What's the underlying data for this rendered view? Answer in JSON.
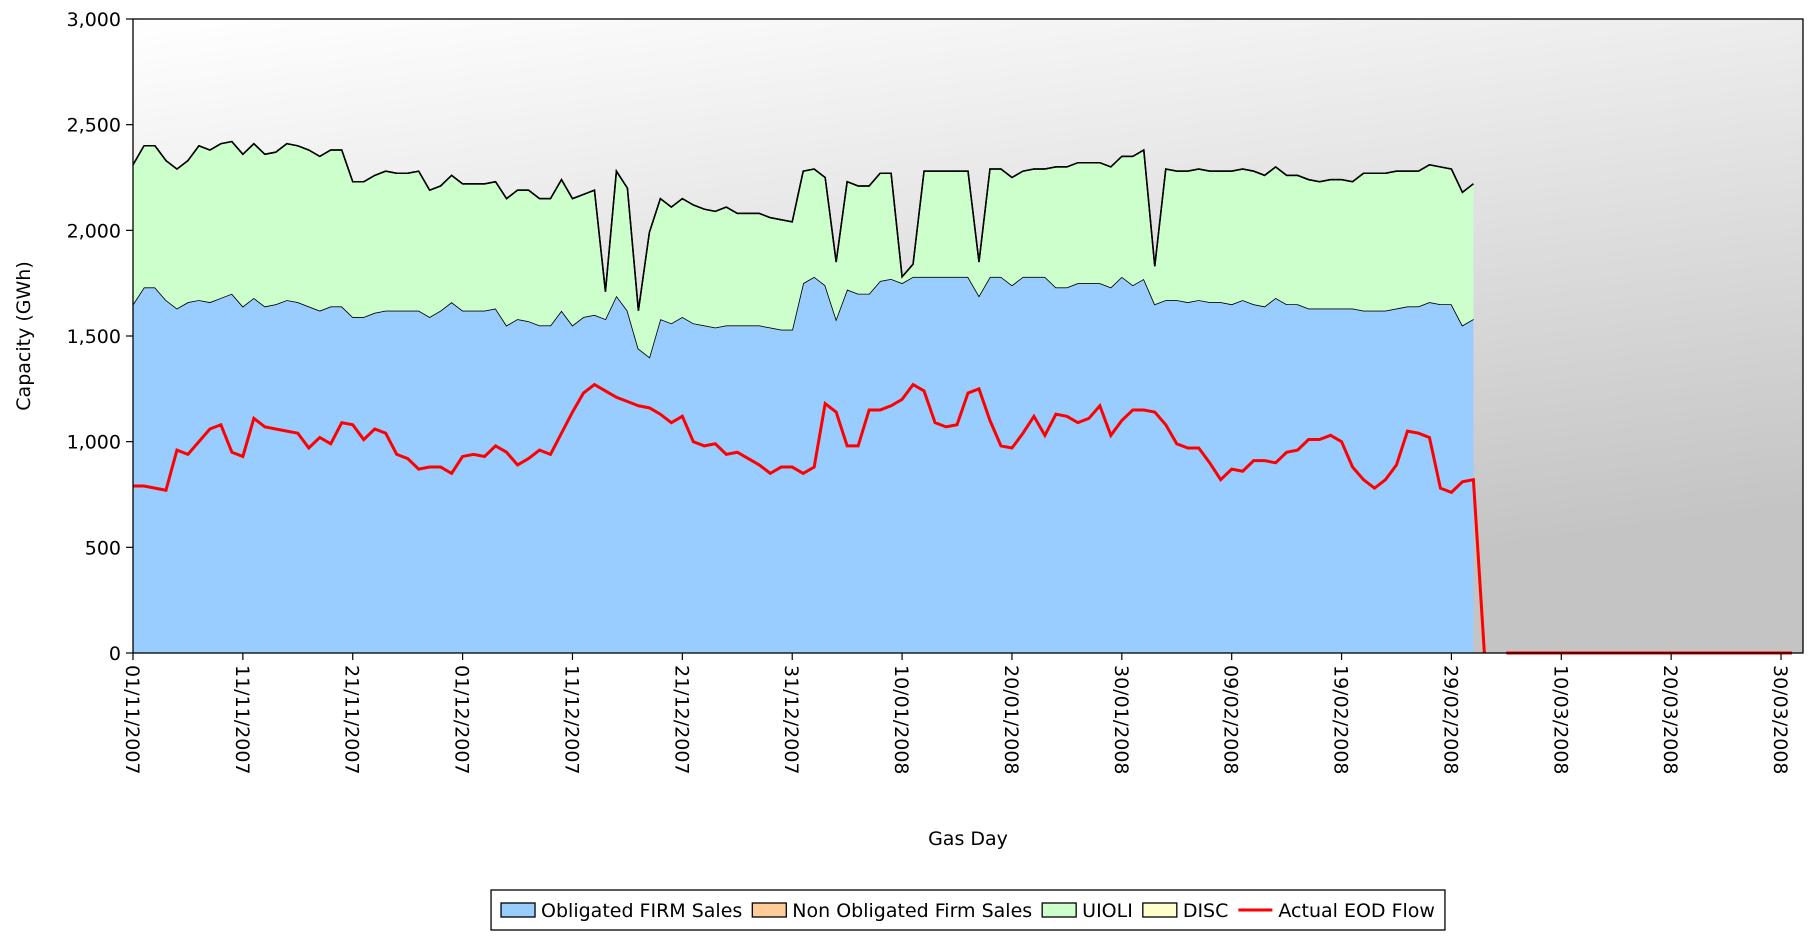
{
  "chart_data": {
    "type": "area",
    "ylabel": "Capacity (GWh)",
    "xlabel": "Gas Day",
    "ylim": [
      0,
      3000
    ],
    "yticks": [
      0,
      500,
      {
        "value": 1000,
        "label": "1,000"
      },
      {
        "value": 1500,
        "label": "1,500"
      },
      {
        "value": 2000,
        "label": "2,000"
      },
      {
        "value": 2500,
        "label": "2,500"
      },
      {
        "value": 3000,
        "label": "3,000"
      }
    ],
    "stacked": true,
    "grid": false,
    "legend": "bottom",
    "categories": [
      "01/11/2007",
      null,
      null,
      null,
      null,
      null,
      null,
      null,
      null,
      null,
      "11/11/2007",
      null,
      null,
      null,
      null,
      null,
      null,
      null,
      null,
      null,
      "21/11/2007",
      null,
      null,
      null,
      null,
      null,
      null,
      null,
      null,
      null,
      "01/12/2007",
      null,
      null,
      null,
      null,
      null,
      null,
      null,
      null,
      null,
      "11/12/2007",
      null,
      null,
      null,
      null,
      null,
      null,
      null,
      null,
      null,
      "21/12/2007",
      null,
      null,
      null,
      null,
      null,
      null,
      null,
      null,
      null,
      "31/12/2007",
      null,
      null,
      null,
      null,
      null,
      null,
      null,
      null,
      null,
      "10/01/2008",
      null,
      null,
      null,
      null,
      null,
      null,
      null,
      null,
      null,
      "20/01/2008",
      null,
      null,
      null,
      null,
      null,
      null,
      null,
      null,
      null,
      "30/01/2008",
      null,
      null,
      null,
      null,
      null,
      null,
      null,
      null,
      null,
      "09/02/2008",
      null,
      null,
      null,
      null,
      null,
      null,
      null,
      null,
      null,
      "19/02/2008",
      null,
      null,
      null,
      null,
      null,
      null,
      null,
      null,
      null,
      "29/02/2008",
      null,
      null,
      null,
      null,
      null,
      null,
      null,
      null,
      null,
      "10/03/2008",
      null,
      null,
      null,
      null,
      null,
      null,
      null,
      null,
      null,
      "20/03/2008",
      null,
      null,
      null,
      null,
      null,
      null,
      null,
      null,
      null,
      "30/03/2008",
      null
    ],
    "series": [
      {
        "name": "Obligated FIRM Sales",
        "type": "area",
        "color": "#99ccff",
        "values": [
          1650,
          1730,
          1730,
          1670,
          1630,
          1660,
          1670,
          1660,
          1680,
          1700,
          1640,
          1680,
          1640,
          1650,
          1670,
          1660,
          1640,
          1620,
          1640,
          1640,
          1590,
          1590,
          1610,
          1620,
          1620,
          1620,
          1620,
          1590,
          1620,
          1660,
          1620,
          1620,
          1620,
          1630,
          1550,
          1580,
          1570,
          1550,
          1550,
          1620,
          1550,
          1590,
          1600,
          1580,
          1690,
          1620,
          1440,
          1400,
          1580,
          1560,
          1590,
          1560,
          1550,
          1540,
          1550,
          1550,
          1550,
          1550,
          1540,
          1530,
          1530,
          1750,
          1780,
          1740,
          1580,
          1720,
          1700,
          1700,
          1760,
          1770,
          1750,
          1780,
          1780,
          1780,
          1780,
          1780,
          1780,
          1690,
          1780,
          1780,
          1740,
          1780,
          1780,
          1780,
          1730,
          1730,
          1750,
          1750,
          1750,
          1730,
          1780,
          1740,
          1770,
          1650,
          1670,
          1670,
          1660,
          1670,
          1660,
          1660,
          1650,
          1670,
          1650,
          1640,
          1680,
          1650,
          1650,
          1630,
          1630,
          1630,
          1630,
          1630,
          1620,
          1620,
          1620,
          1630,
          1640,
          1640,
          1660,
          1650,
          1650,
          1550,
          1580,
          null,
          null,
          null,
          null,
          null,
          null,
          null,
          null,
          null,
          null,
          null,
          null,
          null,
          null,
          null,
          null,
          null,
          null,
          null,
          null,
          null,
          null,
          null,
          null,
          null,
          null,
          null,
          null,
          null
        ]
      },
      {
        "name": "Non Obligated Firm Sales",
        "type": "area",
        "color": "#ffcc99",
        "values": [
          0,
          0,
          0,
          0,
          0,
          0,
          0,
          0,
          0,
          0,
          0,
          0,
          0,
          0,
          0,
          0,
          0,
          0,
          0,
          0,
          0,
          0,
          0,
          0,
          0,
          0,
          0,
          0,
          0,
          0,
          0,
          0,
          0,
          0,
          0,
          0,
          0,
          0,
          0,
          0,
          0,
          0,
          0,
          0,
          0,
          0,
          0,
          0,
          0,
          0,
          0,
          0,
          0,
          0,
          0,
          0,
          0,
          0,
          0,
          0,
          0,
          0,
          0,
          0,
          0,
          0,
          0,
          0,
          0,
          0,
          0,
          0,
          0,
          0,
          0,
          0,
          0,
          0,
          0,
          0,
          0,
          0,
          0,
          0,
          0,
          0,
          0,
          0,
          0,
          0,
          0,
          0,
          0,
          0,
          0,
          0,
          0,
          0,
          0,
          0,
          0,
          0,
          0,
          0,
          0,
          0,
          0,
          0,
          0,
          0,
          0,
          0,
          0,
          0,
          0,
          0,
          0,
          0,
          0,
          0,
          0,
          0,
          0,
          null,
          null,
          null,
          null,
          null,
          null,
          null,
          null,
          null,
          null,
          null,
          null,
          null,
          null,
          null,
          null,
          null,
          null,
          null,
          null,
          null,
          null,
          null,
          null,
          null,
          null,
          null,
          null,
          null
        ]
      },
      {
        "name": "UIOLI",
        "type": "area",
        "color": "#ccffcc",
        "values": [
          660,
          670,
          670,
          660,
          660,
          670,
          730,
          720,
          730,
          720,
          720,
          730,
          720,
          720,
          740,
          740,
          740,
          730,
          740,
          740,
          640,
          640,
          650,
          660,
          650,
          650,
          660,
          600,
          590,
          600,
          600,
          600,
          600,
          600,
          600,
          610,
          620,
          600,
          600,
          620,
          600,
          580,
          590,
          130,
          590,
          580,
          180,
          590,
          570,
          550,
          560,
          560,
          550,
          550,
          560,
          530,
          530,
          530,
          520,
          520,
          510,
          530,
          510,
          510,
          270,
          510,
          510,
          510,
          510,
          500,
          30,
          60,
          500,
          500,
          500,
          500,
          500,
          160,
          510,
          510,
          510,
          500,
          510,
          510,
          570,
          570,
          570,
          570,
          570,
          570,
          570,
          610,
          610,
          180,
          620,
          610,
          620,
          620,
          620,
          620,
          630,
          620,
          630,
          620,
          620,
          610,
          610,
          610,
          600,
          610,
          610,
          600,
          650,
          650,
          650,
          650,
          640,
          640,
          650,
          650,
          640,
          630,
          640,
          null,
          null,
          null,
          null,
          null,
          null,
          null,
          null,
          null,
          null,
          null,
          null,
          null,
          null,
          null,
          null,
          null,
          null,
          null,
          null,
          null,
          null,
          null,
          null,
          null,
          null,
          null,
          null,
          null
        ]
      },
      {
        "name": "DISC",
        "type": "area",
        "color": "#ffffcc",
        "values": [
          0,
          0,
          0,
          0,
          0,
          0,
          0,
          0,
          0,
          0,
          0,
          0,
          0,
          0,
          0,
          0,
          0,
          0,
          0,
          0,
          0,
          0,
          0,
          0,
          0,
          0,
          0,
          0,
          0,
          0,
          0,
          0,
          0,
          0,
          0,
          0,
          0,
          0,
          0,
          0,
          0,
          0,
          0,
          0,
          0,
          0,
          0,
          0,
          0,
          0,
          0,
          0,
          0,
          0,
          0,
          0,
          0,
          0,
          0,
          0,
          0,
          0,
          0,
          0,
          0,
          0,
          0,
          0,
          0,
          0,
          0,
          0,
          0,
          0,
          0,
          0,
          0,
          0,
          0,
          0,
          0,
          0,
          0,
          0,
          0,
          0,
          0,
          0,
          0,
          0,
          0,
          0,
          0,
          0,
          0,
          0,
          0,
          0,
          0,
          0,
          0,
          0,
          0,
          0,
          0,
          0,
          0,
          0,
          0,
          0,
          0,
          0,
          0,
          0,
          0,
          0,
          0,
          0,
          0,
          0,
          0,
          0,
          0,
          null,
          null,
          null,
          null,
          null,
          null,
          null,
          null,
          null,
          null,
          null,
          null,
          null,
          null,
          null,
          null,
          null,
          null,
          null,
          null,
          null,
          null,
          null,
          null,
          null,
          null,
          null,
          null,
          null
        ]
      },
      {
        "name": "Actual EOD Flow",
        "type": "line",
        "color": "#ff0000",
        "values": [
          790,
          790,
          780,
          770,
          960,
          940,
          1000,
          1060,
          1080,
          950,
          930,
          1110,
          1070,
          1060,
          1050,
          1040,
          970,
          1020,
          990,
          1090,
          1080,
          1010,
          1060,
          1040,
          940,
          920,
          870,
          880,
          880,
          850,
          930,
          940,
          930,
          980,
          950,
          890,
          920,
          960,
          940,
          1040,
          1140,
          1230,
          1270,
          1240,
          1210,
          1190,
          1170,
          1160,
          1130,
          1090,
          1120,
          1000,
          980,
          990,
          940,
          950,
          920,
          890,
          850,
          880,
          880,
          850,
          880,
          1180,
          1140,
          980,
          980,
          1150,
          1150,
          1170,
          1200,
          1270,
          1240,
          1090,
          1070,
          1080,
          1230,
          1250,
          1100,
          980,
          970,
          1040,
          1120,
          1030,
          1130,
          1120,
          1090,
          1110,
          1170,
          1030,
          1100,
          1150,
          1150,
          1140,
          1080,
          990,
          970,
          970,
          900,
          820,
          870,
          860,
          910,
          910,
          900,
          950,
          960,
          1010,
          1010,
          1030,
          1000,
          880,
          820,
          780,
          820,
          890,
          1050,
          1040,
          1020,
          780,
          760,
          810,
          820,
          0,
          null,
          0,
          0,
          0,
          0,
          0,
          0,
          0,
          0,
          0,
          0,
          0,
          0,
          0,
          0,
          0,
          0,
          0,
          0,
          0,
          0,
          0,
          0,
          0,
          0,
          0,
          0,
          0
        ]
      }
    ]
  }
}
